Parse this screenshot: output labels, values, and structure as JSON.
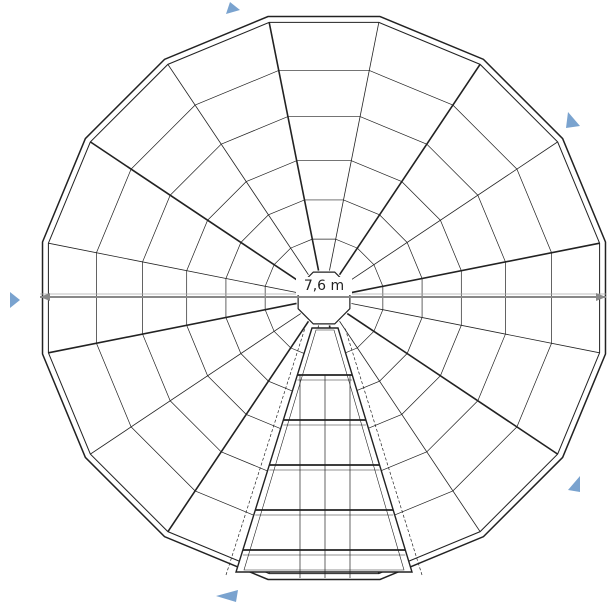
{
  "dimension": {
    "label": "7,6 m"
  }
}
